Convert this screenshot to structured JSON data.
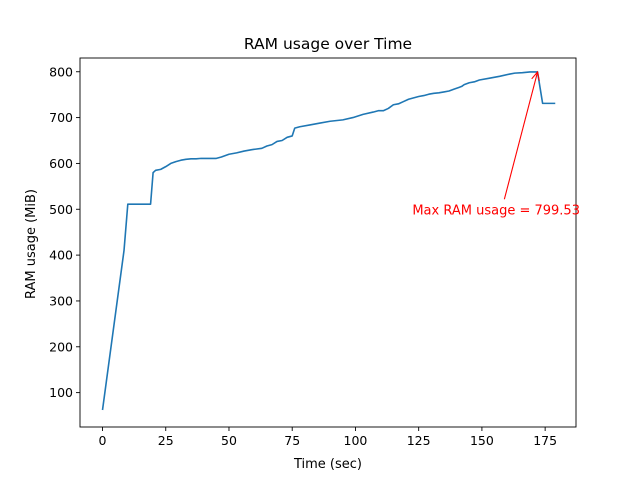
{
  "chart_data": {
    "type": "line",
    "title": "RAM usage over Time",
    "xlabel": "Time (sec)",
    "ylabel": "RAM usage (MiB)",
    "xlim": [
      -8.9,
      187.2
    ],
    "ylim": [
      25,
      830
    ],
    "xticks": [
      0,
      25,
      50,
      75,
      100,
      125,
      150,
      175
    ],
    "yticks": [
      100,
      200,
      300,
      400,
      500,
      600,
      700,
      800
    ],
    "grid": false,
    "color": "#1f77b4",
    "series": [
      {
        "x": [
          0,
          8.5,
          10,
          19,
          20,
          21,
          23,
          25,
          27,
          29,
          31,
          33,
          35,
          37,
          39,
          41,
          43,
          45,
          47,
          50,
          53,
          56,
          59,
          63,
          65,
          67,
          69,
          71,
          73,
          75,
          76,
          78,
          82,
          86,
          90,
          95,
          99,
          103,
          107,
          109,
          111,
          113,
          115,
          117,
          119,
          121,
          123,
          125,
          127,
          129,
          131,
          133,
          135,
          137,
          139,
          141,
          142,
          143,
          145,
          147,
          149,
          153,
          157,
          161,
          163,
          166,
          169,
          172,
          173,
          174,
          179
        ],
        "y": [
          62,
          410,
          511,
          511,
          580,
          585,
          587,
          593,
          600,
          604,
          607,
          609,
          610,
          610,
          611,
          611,
          611,
          611,
          614,
          620,
          623,
          627,
          630,
          633,
          638,
          641,
          648,
          650,
          657,
          660,
          677,
          680,
          684,
          688,
          692,
          695,
          700,
          707,
          712,
          715,
          715,
          720,
          728,
          730,
          735,
          740,
          743,
          746,
          748,
          751,
          753,
          754,
          756,
          758,
          762,
          766,
          768,
          772,
          776,
          778,
          782,
          786,
          790,
          795,
          797,
          798,
          799.5,
          799.53,
          765,
          731,
          731
        ]
      }
    ],
    "annotations": [
      {
        "text": "Max RAM usage = 799.53",
        "color": "#ff0000",
        "xy": [
          172,
          799.53
        ],
        "xytext": [
          122.5,
          500
        ]
      }
    ]
  }
}
